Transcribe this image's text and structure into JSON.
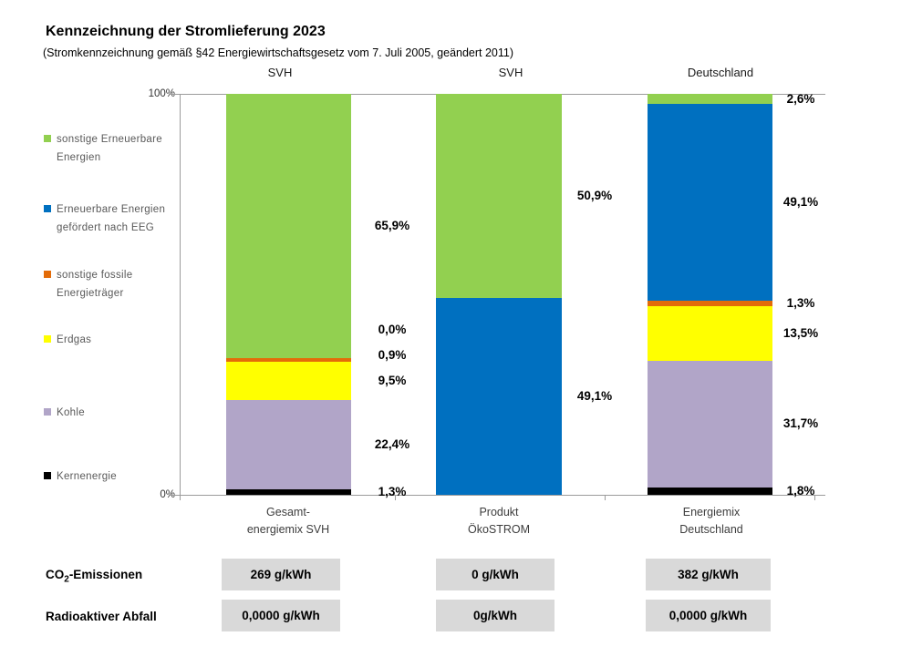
{
  "title": "Kennzeichnung der Stromlieferung 2023",
  "subtitle": "(Stromkennzeichnung gemäß §42 Energiewirtschaftsgesetz vom 7. Juli 2005, geändert 2011)",
  "column_headers": [
    "SVH",
    "SVH",
    "Deutschland"
  ],
  "legend": [
    {
      "key": "sonstige_ee",
      "label": "sonstige Erneuerbare\nEnergien",
      "color": "#92D050"
    },
    {
      "key": "eeg",
      "label": "Erneuerbare Energien\ngefördert nach EEG",
      "color": "#0070C0"
    },
    {
      "key": "fossile",
      "label": "sonstige fossile\nEnergieträger",
      "color": "#E36C09"
    },
    {
      "key": "erdgas",
      "label": "Erdgas",
      "color": "#FFFF00"
    },
    {
      "key": "kohle",
      "label": "Kohle",
      "color": "#B1A5C8"
    },
    {
      "key": "kernenergie",
      "label": "Kernenergie",
      "color": "#000000"
    }
  ],
  "chart_data": {
    "type": "bar",
    "stacked": true,
    "ylim": [
      0,
      100
    ],
    "y_tick_labels": [
      "0%",
      "100%"
    ],
    "grid": false,
    "legend_position": "left",
    "categories": [
      "Gesamt-\nenergiemix SVH",
      "Produkt\nÖkoSTROM",
      "Energiemix\nDeutschland"
    ],
    "group_headers": [
      "SVH",
      "SVH",
      "Deutschland"
    ],
    "bars": [
      {
        "category": "Gesamt-energiemix SVH",
        "segments_bottom_to_top": [
          {
            "key": "kernenergie",
            "value": 1.3,
            "label": "1,3%"
          },
          {
            "key": "kohle",
            "value": 22.4,
            "label": "22,4%"
          },
          {
            "key": "erdgas",
            "value": 9.5,
            "label": "9,5%"
          },
          {
            "key": "fossile",
            "value": 0.9,
            "label": "0,9%"
          },
          {
            "key": "eeg",
            "value": 0.0,
            "label": "0,0%"
          },
          {
            "key": "sonstige_ee",
            "value": 65.9,
            "label": "65,9%"
          }
        ]
      },
      {
        "category": "Produkt ÖkoSTROM",
        "segments_bottom_to_top": [
          {
            "key": "eeg",
            "value": 49.1,
            "label": "49,1%"
          },
          {
            "key": "sonstige_ee",
            "value": 50.9,
            "label": "50,9%"
          }
        ]
      },
      {
        "category": "Energiemix Deutschland",
        "segments_bottom_to_top": [
          {
            "key": "kernenergie",
            "value": 1.8,
            "label": "1,8%"
          },
          {
            "key": "kohle",
            "value": 31.7,
            "label": "31,7%"
          },
          {
            "key": "erdgas",
            "value": 13.5,
            "label": "13,5%"
          },
          {
            "key": "fossile",
            "value": 1.3,
            "label": "1,3%"
          },
          {
            "key": "eeg",
            "value": 49.1,
            "label": "49,1%"
          },
          {
            "key": "sonstige_ee",
            "value": 2.6,
            "label": "2,6%"
          }
        ]
      }
    ]
  },
  "table": {
    "co2_row": {
      "label_main": "CO",
      "label_sub": "2",
      "label_rest": "-Emissionen",
      "values": [
        "269 g/kWh",
        "0 g/kWh",
        "382 g/kWh"
      ]
    },
    "waste_row": {
      "label": "Radioaktiver Abfall",
      "values": [
        "0,0000 g/kWh",
        "0g/kWh",
        "0,0000 g/kWh"
      ]
    }
  }
}
